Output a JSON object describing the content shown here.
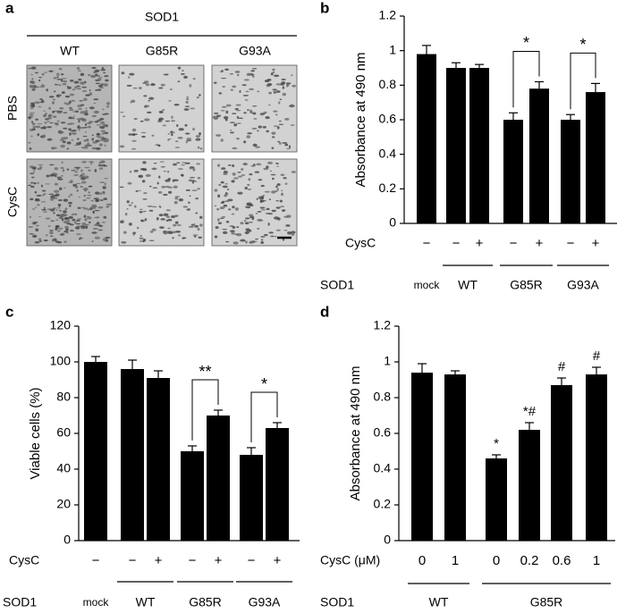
{
  "panel_a": {
    "label": "a",
    "title": "SOD1",
    "columns": [
      "WT",
      "G85R",
      "G93A"
    ],
    "rows": [
      "PBS",
      "CysC"
    ]
  },
  "chart_data": [
    {
      "label": "b",
      "type": "bar",
      "ylabel": "Absorbance at 490 nm",
      "color": "#000000",
      "ylim": [
        0,
        1.2
      ],
      "yticks": [
        0,
        0.2,
        0.4,
        0.6,
        0.8,
        1,
        1.2
      ],
      "row_label": "CysC",
      "categories": [
        "−",
        "−",
        "+",
        "−",
        "+",
        "−",
        "+"
      ],
      "values": [
        0.98,
        0.9,
        0.9,
        0.6,
        0.78,
        0.6,
        0.76
      ],
      "errors": [
        0.05,
        0.03,
        0.02,
        0.04,
        0.04,
        0.03,
        0.05
      ],
      "group_label": "SOD1",
      "groups": [
        {
          "name": "mock",
          "from": 0,
          "to": 0
        },
        {
          "name": "WT",
          "from": 1,
          "to": 2
        },
        {
          "name": "G85R",
          "from": 3,
          "to": 4
        },
        {
          "name": "G93A",
          "from": 5,
          "to": 6
        }
      ],
      "brackets": [
        {
          "from": 3,
          "to": 4,
          "label": "*"
        },
        {
          "from": 5,
          "to": 6,
          "label": "*"
        }
      ]
    },
    {
      "label": "c",
      "type": "bar",
      "ylabel": "Viable cells (%)",
      "color": "#000000",
      "ylim": [
        0,
        120
      ],
      "yticks": [
        0,
        20,
        40,
        60,
        80,
        100,
        120
      ],
      "row_label": "CysC",
      "categories": [
        "−",
        "−",
        "+",
        "−",
        "+",
        "−",
        "+"
      ],
      "values": [
        100,
        96,
        91,
        50,
        70,
        48,
        63
      ],
      "errors": [
        3,
        5,
        4,
        3,
        3,
        4,
        3
      ],
      "group_label": "SOD1",
      "groups": [
        {
          "name": "mock",
          "from": 0,
          "to": 0
        },
        {
          "name": "WT",
          "from": 1,
          "to": 2
        },
        {
          "name": "G85R",
          "from": 3,
          "to": 4
        },
        {
          "name": "G93A",
          "from": 5,
          "to": 6
        }
      ],
      "brackets": [
        {
          "from": 3,
          "to": 4,
          "label": "**"
        },
        {
          "from": 5,
          "to": 6,
          "label": "*"
        }
      ]
    },
    {
      "label": "d",
      "type": "bar",
      "ylabel": "Absorbance at 490 nm",
      "color": "#000000",
      "ylim": [
        0,
        1.2
      ],
      "yticks": [
        0,
        0.2,
        0.4,
        0.6,
        0.8,
        1,
        1.2
      ],
      "row_label": "CysC (μM)",
      "categories": [
        "0",
        "1",
        "0",
        "0.2",
        "0.6",
        "1"
      ],
      "values": [
        0.94,
        0.93,
        0.46,
        0.62,
        0.87,
        0.93
      ],
      "errors": [
        0.05,
        0.02,
        0.02,
        0.04,
        0.04,
        0.04
      ],
      "bar_labels": [
        null,
        null,
        "*",
        "*#",
        "#",
        "#"
      ],
      "group_label": "SOD1",
      "groups": [
        {
          "name": "WT",
          "from": 0,
          "to": 1
        },
        {
          "name": "G85R",
          "from": 2,
          "to": 5
        }
      ]
    }
  ]
}
